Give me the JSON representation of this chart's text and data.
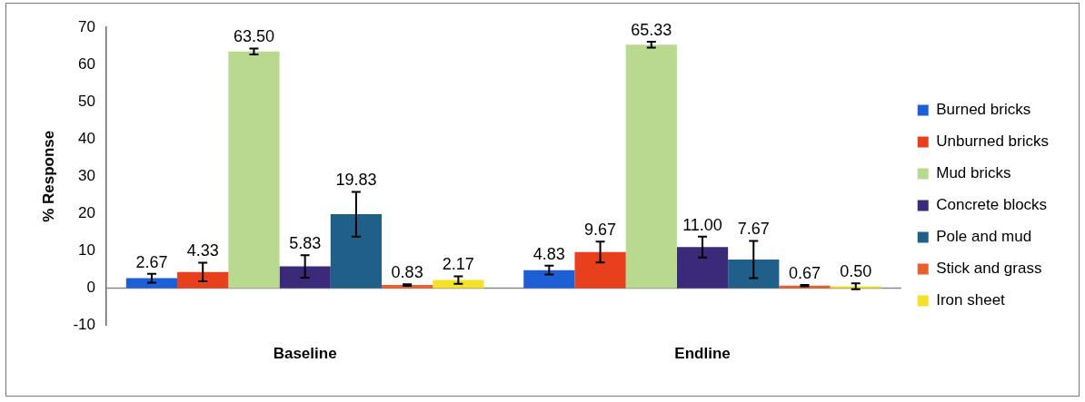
{
  "chart_data": {
    "type": "bar",
    "ylabel": "% Response",
    "categories": [
      "Baseline",
      "Endline"
    ],
    "series": [
      {
        "name": "Burned bricks",
        "color": "#1f5fd6",
        "values": [
          2.67,
          4.83
        ],
        "errors": [
          1.2,
          1.2
        ],
        "value_labels": [
          "2.67",
          "4.83"
        ]
      },
      {
        "name": "Unburned bricks",
        "color": "#e8401c",
        "values": [
          4.33,
          9.67
        ],
        "errors": [
          2.5,
          2.8
        ],
        "value_labels": [
          "4.33",
          "9.67"
        ]
      },
      {
        "name": "Mud bricks",
        "color": "#b9d98f",
        "values": [
          63.5,
          65.33
        ],
        "errors": [
          0.8,
          0.8
        ],
        "value_labels": [
          "63.50",
          "65.33"
        ]
      },
      {
        "name": "Concrete blocks",
        "color": "#3b2a7a",
        "values": [
          5.83,
          11.0
        ],
        "errors": [
          3,
          2.8
        ],
        "value_labels": [
          "5.83",
          "11.00"
        ]
      },
      {
        "name": "Pole and mud",
        "color": "#1f5f8a",
        "values": [
          19.83,
          7.67
        ],
        "errors": [
          6,
          5
        ],
        "value_labels": [
          "19.83",
          "7.67"
        ]
      },
      {
        "name": "Stick and grass",
        "color": "#e8602c",
        "values": [
          0.83,
          0.67
        ],
        "errors": [
          0.2,
          0.2
        ],
        "value_labels": [
          "0.83",
          "0.67"
        ]
      },
      {
        "name": "Iron sheet",
        "color": "#f5e12a",
        "values": [
          2.17,
          0.5
        ],
        "errors": [
          1,
          0.8
        ],
        "value_labels": [
          "2.17",
          "0.50"
        ]
      }
    ],
    "ylim": [
      -10,
      70
    ],
    "yticks": [
      -10,
      0,
      10,
      20,
      30,
      40,
      50,
      60,
      70
    ],
    "legend": "right"
  }
}
